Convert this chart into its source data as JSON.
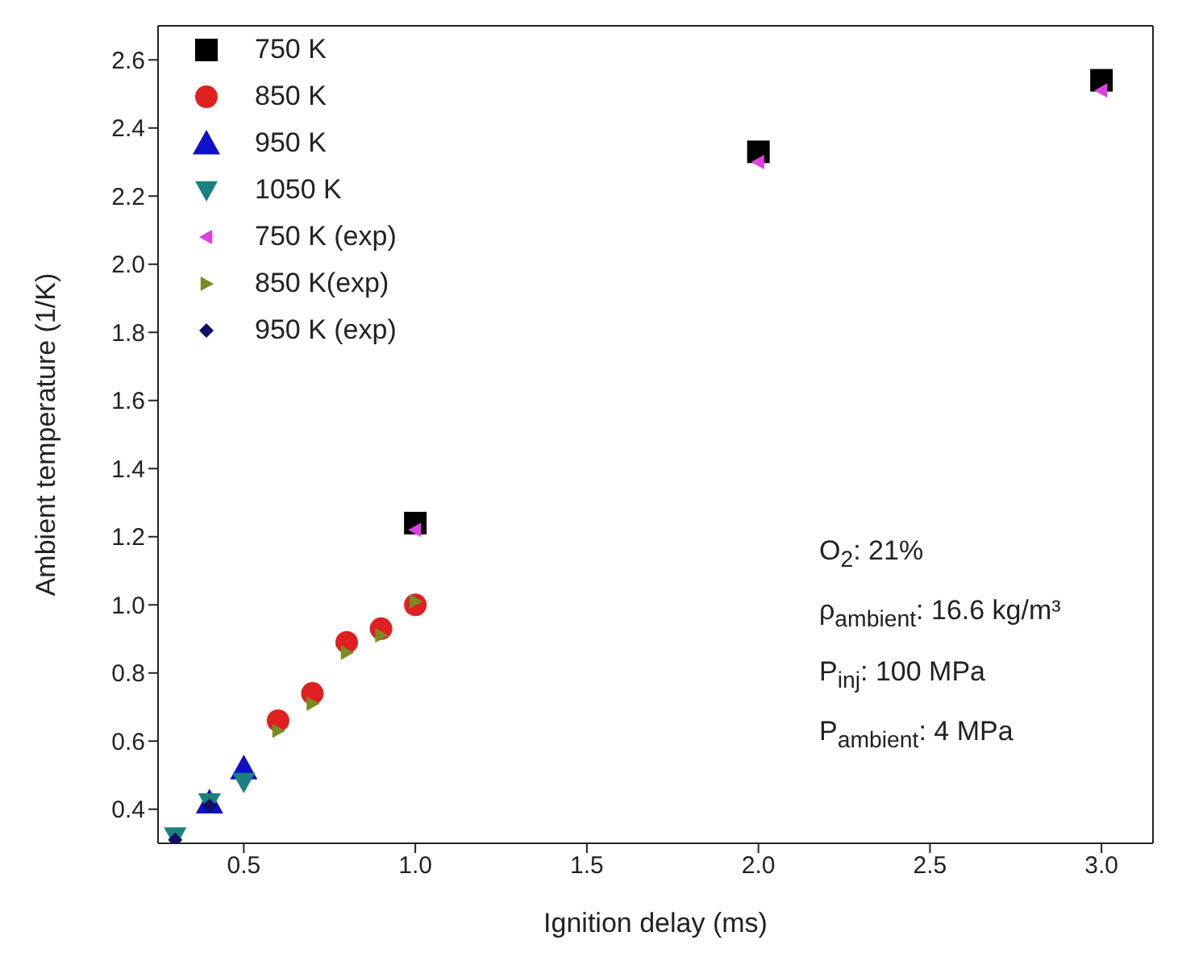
{
  "chart_data": {
    "type": "scatter",
    "xlabel": "Ignition delay (ms)",
    "ylabel": "Ambient temperature (1/K)",
    "xlim": [
      0.25,
      3.15
    ],
    "xticks": [
      0.5,
      {
        "value": 1,
        "label": "1.0"
      },
      1.5,
      {
        "value": 2,
        "label": "2.0"
      },
      2.5,
      {
        "value": 3,
        "label": "3.0"
      }
    ],
    "ylim": [
      0.3,
      2.7
    ],
    "yticks": [
      0.4,
      0.6,
      0.8,
      {
        "value": 1,
        "label": "1.0"
      },
      1.2,
      1.4,
      1.6,
      1.8,
      {
        "value": 2,
        "label": "2.0"
      },
      2.2,
      2.4,
      2.6
    ],
    "grid": false,
    "legend": "top left",
    "annotations": [
      "O$_{2}$: 21%",
      "ρ$_{ambient}$: 16.6 kg/m³",
      "P$_{inj}$: 100 MPa",
      "P$_{ambient}$: 4 MPa"
    ],
    "series": [
      {
        "name": "750 K",
        "color": "#000000",
        "marker": "square",
        "x": [
          1.0,
          2.0,
          3.0
        ],
        "values": [
          1.24,
          2.33,
          2.54
        ]
      },
      {
        "name": "850 K",
        "color": "#e02020",
        "marker": "circle",
        "x": [
          0.6,
          0.7,
          0.8,
          0.9,
          1.0
        ],
        "values": [
          0.66,
          0.74,
          0.89,
          0.93,
          1.0
        ]
      },
      {
        "name": "950 K",
        "color": "#1010c8",
        "marker": "triangle",
        "x": [
          0.4,
          0.5
        ],
        "values": [
          0.42,
          0.52
        ]
      },
      {
        "name": "1050 K",
        "color": "#1a8080",
        "marker": "triangle-down",
        "x": [
          0.3,
          0.4,
          0.5
        ],
        "values": [
          0.32,
          0.42,
          0.48
        ]
      },
      {
        "name": "750 K (exp)",
        "color": "#e040e0",
        "marker": "triangle-left",
        "x": [
          1.0,
          2.0,
          3.0
        ],
        "values": [
          1.22,
          2.3,
          2.51
        ]
      },
      {
        "name": "850 K(exp)",
        "color": "#7a8a20",
        "marker": "triangle-right",
        "x": [
          0.6,
          0.7,
          0.8,
          0.9,
          1.0
        ],
        "values": [
          0.63,
          0.71,
          0.86,
          0.91,
          1.01
        ]
      },
      {
        "name": "950 K (exp)",
        "color": "#101060",
        "marker": "diamond",
        "x": [
          0.3,
          0.4
        ],
        "values": [
          0.31,
          0.41
        ]
      }
    ]
  }
}
